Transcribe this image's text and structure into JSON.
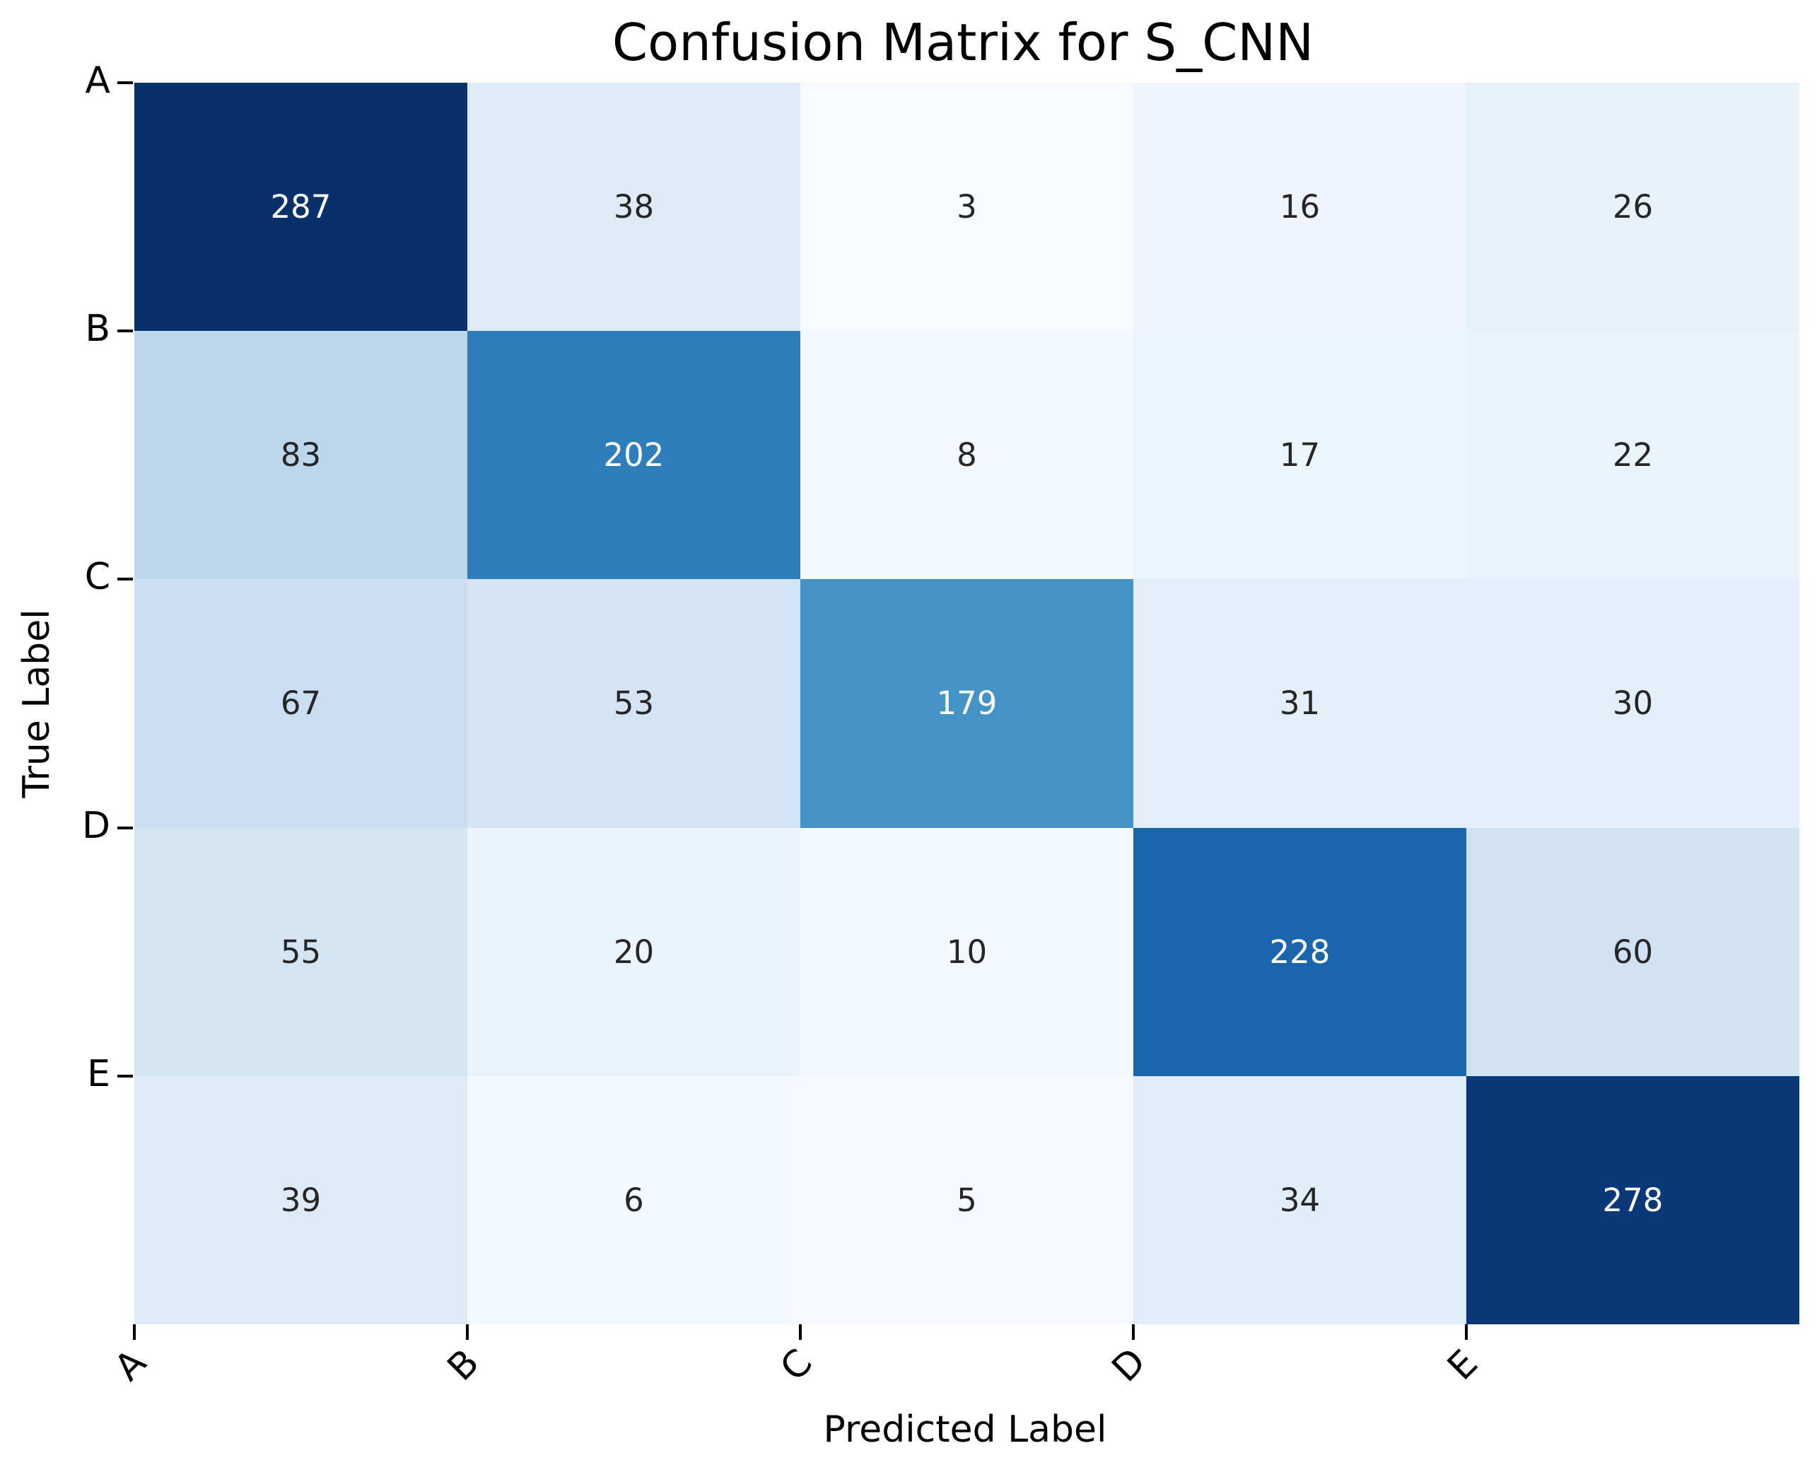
{
  "chart_data": {
    "type": "heatmap",
    "title": "Confusion Matrix for S_CNN",
    "xlabel": "Predicted Label",
    "ylabel": "True Label",
    "x_categories": [
      "A",
      "B",
      "C",
      "D",
      "E"
    ],
    "y_categories": [
      "A",
      "B",
      "C",
      "D",
      "E"
    ],
    "matrix": [
      [
        287,
        38,
        3,
        16,
        26
      ],
      [
        83,
        202,
        8,
        17,
        22
      ],
      [
        67,
        53,
        179,
        31,
        30
      ],
      [
        55,
        20,
        10,
        228,
        60
      ],
      [
        39,
        6,
        5,
        34,
        278
      ]
    ],
    "colormap": "Blues",
    "colormap_stops": [
      "#f7fbff",
      "#deebf7",
      "#c6dbef",
      "#9ecae1",
      "#6baed6",
      "#4292c6",
      "#2171b5",
      "#08519c",
      "#08306b"
    ],
    "vmin": 3,
    "vmax": 287,
    "annotation_color_dark": "#262626",
    "annotation_color_light": "#ffffff",
    "x_tick_rotation_deg": 45,
    "grid": false,
    "legend": "none"
  }
}
